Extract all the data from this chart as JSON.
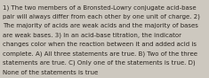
{
  "lines": [
    "1) The two members of a Bronsted-Lowry conjugate acid-base",
    "pair will always differ from each other by one unit of charge. 2)",
    "The majority of acids are weak acids and the majority of bases",
    "are weak bases. 3) In an acid-base titration, the indicator",
    "changes color when the reaction between it and added acid is",
    "complete. A) All three statements are true. B) Two of the three",
    "statements are true. C) Only one of the statements is true. D)",
    "None of the statements is true"
  ],
  "background_color": "#cdc8bf",
  "text_color": "#2a2520",
  "font_size": 5.05,
  "fig_width": 2.35,
  "fig_height": 0.88,
  "dpi": 100
}
